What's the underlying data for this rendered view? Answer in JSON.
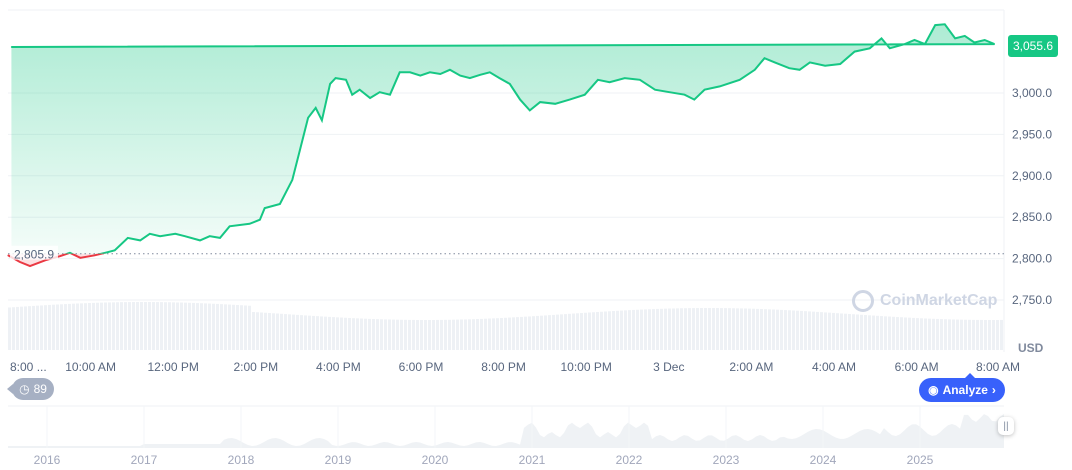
{
  "chart_data": {
    "type": "area",
    "x_unit": "time",
    "ylabel": "USD",
    "ylim": [
      2725,
      3100
    ],
    "y_ticks": [
      "2,750.0",
      "2,800.0",
      "2,850.0",
      "2,900.0",
      "2,950.0",
      "3,000.0"
    ],
    "y_tick_values": [
      2750,
      2800,
      2850,
      2900,
      2950,
      3000
    ],
    "x_ticks": [
      "8:00 ...",
      "10:00 AM",
      "12:00 PM",
      "2:00 PM",
      "4:00 PM",
      "6:00 PM",
      "8:00 PM",
      "10:00 PM",
      "3 Dec",
      "2:00 AM",
      "4:00 AM",
      "6:00 AM",
      "8:00 AM"
    ],
    "x_tick_times": [
      "08:00",
      "10:00",
      "12:00",
      "14:00",
      "16:00",
      "18:00",
      "20:00",
      "22:00",
      "00:00",
      "02:00",
      "04:00",
      "06:00",
      "08:00"
    ],
    "baseline": {
      "value": 2805.9,
      "label": "2,805.9"
    },
    "last_price": {
      "value": 3055.6,
      "label": "3,055.6"
    },
    "colors": {
      "up": "#16c784",
      "down": "#ea3943",
      "analyze": "#3861fb"
    },
    "grid": true,
    "points": [
      [
        "08:00",
        2804
      ],
      [
        "08:17",
        2796
      ],
      [
        "08:32",
        2791
      ],
      [
        "08:54",
        2798
      ],
      [
        "09:16",
        2803
      ],
      [
        "09:30",
        2807
      ],
      [
        "09:45",
        2801
      ],
      [
        "10:06",
        2804
      ],
      [
        "10:21",
        2807
      ],
      [
        "10:35",
        2810
      ],
      [
        "10:54",
        2825
      ],
      [
        "11:12",
        2822
      ],
      [
        "11:26",
        2830
      ],
      [
        "11:41",
        2827
      ],
      [
        "12:03",
        2830
      ],
      [
        "12:17",
        2827
      ],
      [
        "12:39",
        2822
      ],
      [
        "12:53",
        2827
      ],
      [
        "13:08",
        2825
      ],
      [
        "13:22",
        2839
      ],
      [
        "13:51",
        2842
      ],
      [
        "14:06",
        2847
      ],
      [
        "14:13",
        2861
      ],
      [
        "14:35",
        2866
      ],
      [
        "14:53",
        2895
      ],
      [
        "15:04",
        2931
      ],
      [
        "15:16",
        2970
      ],
      [
        "15:27",
        2982
      ],
      [
        "15:36",
        2967
      ],
      [
        "15:48",
        3011
      ],
      [
        "15:56",
        3018
      ],
      [
        "16:11",
        3016
      ],
      [
        "16:20",
        2998
      ],
      [
        "16:31",
        3004
      ],
      [
        "16:46",
        2994
      ],
      [
        "17:00",
        3001
      ],
      [
        "17:15",
        2998
      ],
      [
        "17:29",
        3025
      ],
      [
        "17:44",
        3025
      ],
      [
        "17:59",
        3021
      ],
      [
        "18:13",
        3025
      ],
      [
        "18:28",
        3023
      ],
      [
        "18:42",
        3028
      ],
      [
        "18:57",
        3021
      ],
      [
        "19:11",
        3018
      ],
      [
        "19:26",
        3022
      ],
      [
        "19:40",
        3025
      ],
      [
        "19:54",
        3018
      ],
      [
        "20:09",
        3011
      ],
      [
        "20:24",
        2992
      ],
      [
        "20:38",
        2979
      ],
      [
        "20:53",
        2989
      ],
      [
        "21:15",
        2987
      ],
      [
        "21:36",
        2992
      ],
      [
        "21:58",
        2998
      ],
      [
        "22:17",
        3016
      ],
      [
        "22:34",
        3013
      ],
      [
        "22:56",
        3018
      ],
      [
        "23:18",
        3016
      ],
      [
        "23:40",
        3004
      ],
      [
        "00:01",
        3001
      ],
      [
        "00:23",
        2998
      ],
      [
        "00:37",
        2992
      ],
      [
        "00:52",
        3004
      ],
      [
        "01:14",
        3008
      ],
      [
        "01:43",
        3016
      ],
      [
        "02:05",
        3028
      ],
      [
        "02:19",
        3042
      ],
      [
        "02:34",
        3037
      ],
      [
        "02:55",
        3030
      ],
      [
        "03:10",
        3028
      ],
      [
        "03:25",
        3037
      ],
      [
        "03:47",
        3033
      ],
      [
        "04:09",
        3035
      ],
      [
        "04:30",
        3050
      ],
      [
        "04:52",
        3054
      ],
      [
        "05:09",
        3066
      ],
      [
        "05:21",
        3054
      ],
      [
        "05:43",
        3059
      ],
      [
        "05:57",
        3064
      ],
      [
        "06:12",
        3059
      ],
      [
        "06:27",
        3082
      ],
      [
        "06:41",
        3083
      ],
      [
        "06:56",
        3066
      ],
      [
        "07:10",
        3069
      ],
      [
        "07:24",
        3061
      ],
      [
        "07:39",
        3064
      ],
      [
        "07:53",
        3059
      ],
      [
        "08:05",
        3055.6
      ]
    ]
  },
  "navigator": {
    "years": [
      "2016",
      "2017",
      "2018",
      "2019",
      "2020",
      "2021",
      "2022",
      "2023",
      "2024",
      "2025"
    ]
  },
  "controls": {
    "history_count": "89",
    "analyze_label": "Analyze",
    "currency": "USD"
  },
  "watermark": "CoinMarketCap"
}
